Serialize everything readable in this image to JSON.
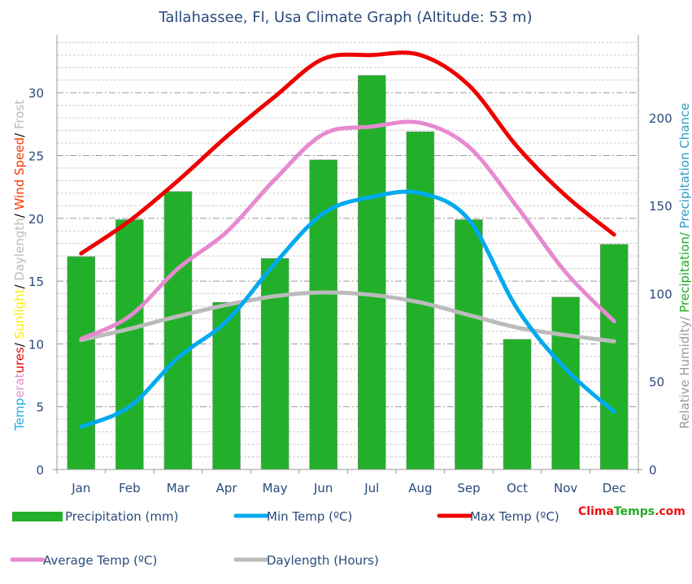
{
  "chart_data": {
    "type": "bar+line",
    "title": "Tallahassee, Fl, Usa Climate Graph (Altitude: 53 m)",
    "categories": [
      "Jan",
      "Feb",
      "Mar",
      "Apr",
      "May",
      "Jun",
      "Jul",
      "Aug",
      "Sep",
      "Oct",
      "Nov",
      "Dec"
    ],
    "left_axis": {
      "label_parts": [
        {
          "text": "Temperatures",
          "colors": [
            "#1ab0e8",
            "#e68ad0"
          ]
        },
        {
          "text": "/ ",
          "color": "#000000"
        },
        {
          "text": "Sunlight",
          "color": "#ffee00"
        },
        {
          "text": "/ ",
          "color": "#000000"
        },
        {
          "text": "Daylength",
          "color": "#bbbbbb"
        },
        {
          "text": "/ ",
          "color": "#000000"
        },
        {
          "text": "Wind Speed",
          "color": "#ff3300"
        },
        {
          "text": "/ ",
          "color": "#000000"
        },
        {
          "text": "Frost",
          "color": "#bbbbbb"
        }
      ],
      "ticks": [
        0,
        5,
        10,
        15,
        20,
        25,
        30
      ],
      "range": [
        0,
        34.6
      ]
    },
    "right_axis": {
      "label_parts": [
        {
          "text": "Relative Humidity/ ",
          "color": "#999999"
        },
        {
          "text": "Precipitation/ ",
          "color": "#22aa22"
        },
        {
          "text": "Precipitation Chance",
          "color": "#3399cc"
        }
      ],
      "ticks": [
        0,
        50,
        100,
        150,
        200
      ],
      "range": [
        0,
        247
      ]
    },
    "grid": true,
    "series": [
      {
        "name": "Precipitation (mm)",
        "type": "bar",
        "axis": "right",
        "color": "#22b02a",
        "values": [
          121,
          142,
          158,
          95,
          120,
          176,
          224,
          192,
          142,
          74,
          98,
          128
        ]
      },
      {
        "name": "Min Temp (ºC)",
        "type": "line",
        "axis": "left",
        "color": "#00aaee",
        "values": [
          3.4,
          5.0,
          8.9,
          11.8,
          16.4,
          20.4,
          21.7,
          22.0,
          19.9,
          12.8,
          8.0,
          4.6
        ]
      },
      {
        "name": "Max Temp (ºC)",
        "type": "line",
        "axis": "left",
        "color": "#ee0000",
        "values": [
          17.2,
          19.8,
          23.0,
          26.5,
          29.7,
          32.7,
          33.0,
          33.0,
          30.6,
          25.7,
          21.8,
          18.7
        ]
      },
      {
        "name": "Average Temp (ºC)",
        "type": "line",
        "axis": "left",
        "color": "#e68ad0",
        "values": [
          10.4,
          12.2,
          16.0,
          18.9,
          23.1,
          26.7,
          27.3,
          27.6,
          25.7,
          20.9,
          15.7,
          11.8
        ]
      },
      {
        "name": "Daylength (Hours)",
        "type": "line",
        "axis": "left",
        "color": "#bbbbbb",
        "values": [
          10.3,
          11.2,
          12.2,
          13.1,
          13.8,
          14.1,
          13.9,
          13.3,
          12.3,
          11.3,
          10.7,
          10.2
        ]
      }
    ],
    "legend_placement": "bottom",
    "watermark": {
      "part1": "Clima",
      "part2": "Temps",
      ".com": ".com",
      "color1": "#ee1111",
      "color2": "#22aa22"
    }
  }
}
